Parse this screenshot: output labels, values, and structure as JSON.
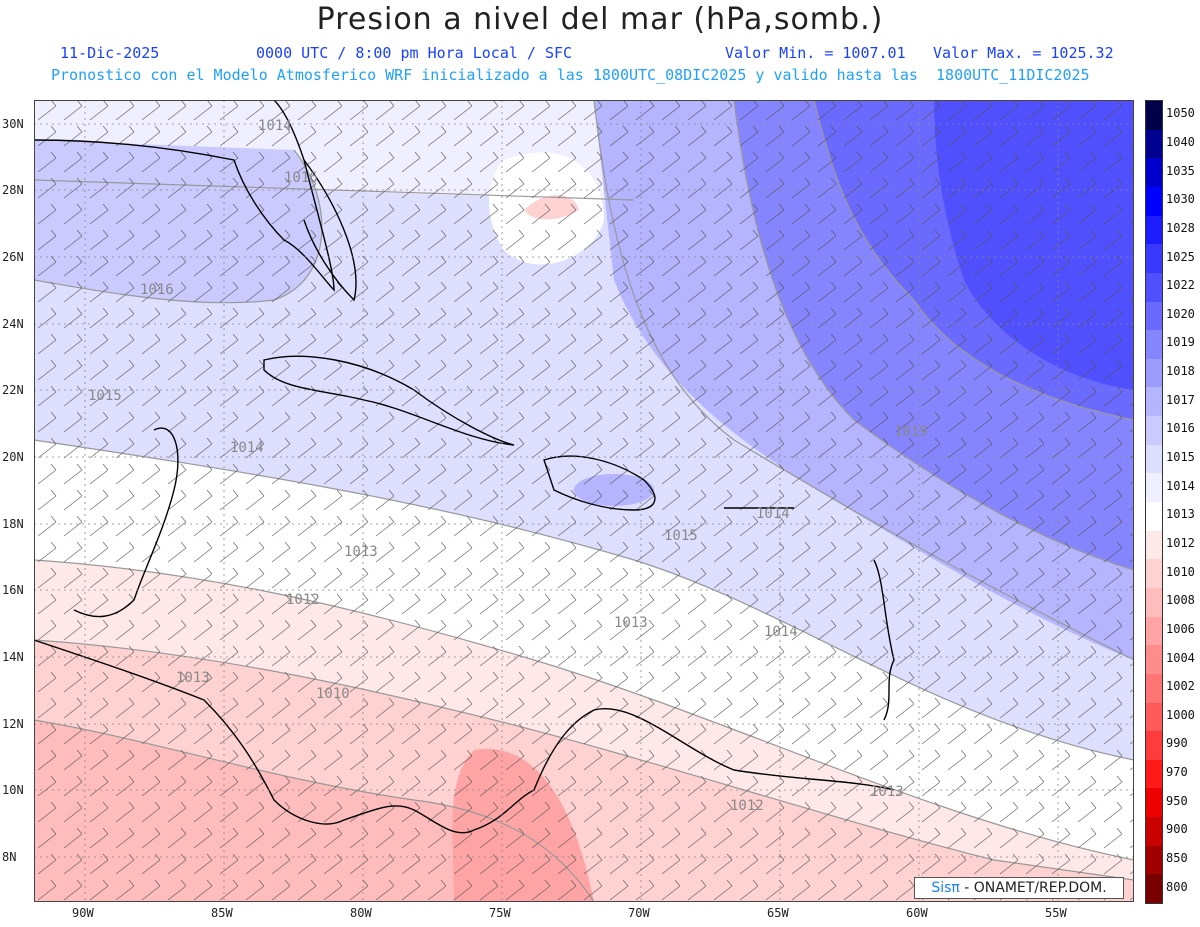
{
  "header": {
    "title": "Presion a nivel del mar (hPa,somb.)",
    "date": "11-Dic-2025",
    "time": "0000 UTC / 8:00 pm Hora Local / SFC",
    "min": "Valor Min. = 1007.01",
    "max": "Valor Max. = 1025.32",
    "forecast": "Pronostico con el Modelo Atmosferico WRF inicializado a las 1800UTC_08DIC2025 y valido hasta las  1800UTC_11DIC2025"
  },
  "axes": {
    "lat": [
      "30N",
      "28N",
      "26N",
      "24N",
      "22N",
      "20N",
      "18N",
      "16N",
      "14N",
      "12N",
      "10N",
      "8N"
    ],
    "lon": [
      "90W",
      "85W",
      "80W",
      "75W",
      "70W",
      "65W",
      "60W",
      "55W"
    ]
  },
  "colorbar": {
    "levels": [
      "1050",
      "1040",
      "1035",
      "1030",
      "1028",
      "1025",
      "1022",
      "1020",
      "1019",
      "1018",
      "1017",
      "1016",
      "1015",
      "1014",
      "1013",
      "1012",
      "1010",
      "1008",
      "1006",
      "1004",
      "1002",
      "1000",
      "990",
      "970",
      "950",
      "900",
      "850",
      "800"
    ],
    "colors": [
      "#00004a",
      "#000090",
      "#0000cc",
      "#0000ff",
      "#1c1cff",
      "#3838ff",
      "#5050ff",
      "#6a6aff",
      "#8585ff",
      "#9c9cff",
      "#b4b4ff",
      "#cacaff",
      "#dedeff",
      "#efefff",
      "#ffffff",
      "#ffe8e8",
      "#ffd2d2",
      "#ffbcbc",
      "#ffa4a4",
      "#ff8c8c",
      "#ff7474",
      "#ff5a5a",
      "#ff3c3c",
      "#ff1a1a",
      "#ee0000",
      "#c80000",
      "#a00000",
      "#780000"
    ]
  },
  "contour_labels": [
    "1014",
    "1016",
    "1016",
    "1015",
    "1014",
    "1019",
    "1013",
    "1012",
    "1013",
    "1010",
    "1015",
    "1013",
    "1014",
    "1012",
    "1013",
    "1014"
  ],
  "credit": {
    "brand": "Sisπ",
    "org": "- ONAMET/REP.DOM."
  }
}
